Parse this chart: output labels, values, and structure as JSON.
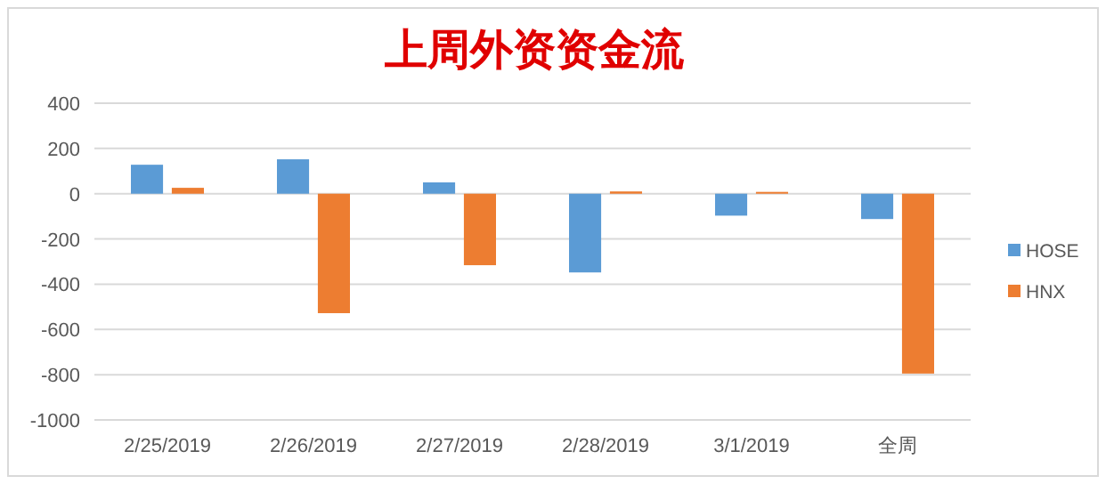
{
  "chart_data": {
    "type": "bar",
    "title": "上周外资资金流",
    "categories": [
      "2/25/2019",
      "2/26/2019",
      "2/27/2019",
      "2/28/2019",
      "3/1/2019",
      "全周"
    ],
    "series": [
      {
        "name": "HOSE",
        "color": "#5b9bd5",
        "values": [
          128,
          152,
          50,
          -348,
          -97,
          -112
        ]
      },
      {
        "name": "HNX",
        "color": "#ed7d31",
        "values": [
          26,
          -528,
          -316,
          10,
          8,
          -795
        ]
      }
    ],
    "ylim": [
      -1000,
      400
    ],
    "yticks": [
      -1000,
      -800,
      -600,
      -400,
      -200,
      0,
      200,
      400
    ],
    "grid": "y",
    "legend": "right"
  }
}
